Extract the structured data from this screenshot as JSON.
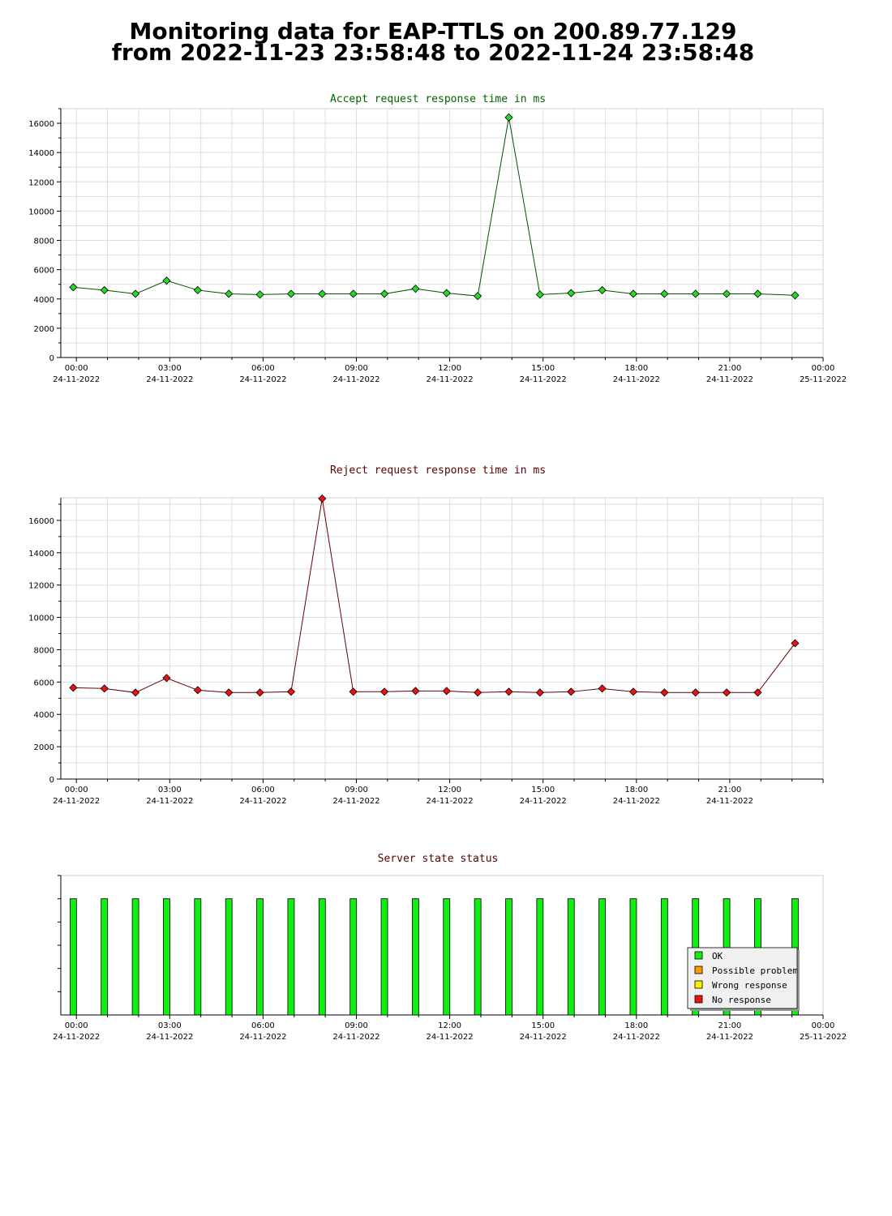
{
  "page": {
    "title_line_1": "Monitoring data for EAP-TTLS on 200.89.77.129",
    "title_line_2": "from 2022-11-23 23:58:48 to 2022-11-24 23:58:48"
  },
  "colors": {
    "accept_title": "#006400",
    "accept_line": "#005000",
    "accept_marker": "#22dd22",
    "reject_title": "#5a0000",
    "reject_line": "#600000",
    "reject_marker": "#ee1111",
    "status_title": "#5a0000",
    "ok": "#11ee11",
    "possible_problem": "#ff9900",
    "wrong_response": "#ffee00",
    "no_response": "#ee1111",
    "grid": "#dddddd"
  },
  "chart_data": [
    {
      "type": "line",
      "title": "Accept request response time in ms",
      "xlabel": "",
      "ylabel": "",
      "x_unit": "hours after 2022-11-24 00:00",
      "xlim": [
        -0.5,
        24
      ],
      "ylim": [
        0,
        17000
      ],
      "y_ticks": [
        0,
        2000,
        4000,
        6000,
        8000,
        10000,
        12000,
        14000,
        16000
      ],
      "x_tick_labels": [
        {
          "time": "00:00",
          "date": "24-11-2022"
        },
        {
          "time": "03:00",
          "date": "24-11-2022"
        },
        {
          "time": "06:00",
          "date": "24-11-2022"
        },
        {
          "time": "09:00",
          "date": "24-11-2022"
        },
        {
          "time": "12:00",
          "date": "24-11-2022"
        },
        {
          "time": "15:00",
          "date": "24-11-2022"
        },
        {
          "time": "18:00",
          "date": "24-11-2022"
        },
        {
          "time": "21:00",
          "date": "24-11-2022"
        },
        {
          "time": "00:00",
          "date": "25-11-2022"
        }
      ],
      "grid": true,
      "x": [
        -0.1,
        0.9,
        1.9,
        2.9,
        3.9,
        4.9,
        5.9,
        6.9,
        7.9,
        8.9,
        9.9,
        10.9,
        11.9,
        12.9,
        13.9,
        14.9,
        15.9,
        16.9,
        17.9,
        18.9,
        19.9,
        20.9,
        21.9,
        23.1
      ],
      "values": [
        4800,
        4600,
        4350,
        5250,
        4600,
        4350,
        4300,
        4350,
        4350,
        4350,
        4350,
        4700,
        4400,
        4200,
        16400,
        4300,
        4400,
        4600,
        4350,
        4350,
        4350,
        4350,
        4350,
        4250
      ]
    },
    {
      "type": "line",
      "title": "Reject request response time in ms",
      "xlabel": "",
      "ylabel": "",
      "x_unit": "hours after 2022-11-24 00:00",
      "xlim": [
        -0.5,
        24
      ],
      "ylim": [
        0,
        17400
      ],
      "y_ticks": [
        0,
        2000,
        4000,
        6000,
        8000,
        10000,
        12000,
        14000,
        16000
      ],
      "x_tick_labels": [
        {
          "time": "00:00",
          "date": "24-11-2022"
        },
        {
          "time": "03:00",
          "date": "24-11-2022"
        },
        {
          "time": "06:00",
          "date": "24-11-2022"
        },
        {
          "time": "09:00",
          "date": "24-11-2022"
        },
        {
          "time": "12:00",
          "date": "24-11-2022"
        },
        {
          "time": "15:00",
          "date": "24-11-2022"
        },
        {
          "time": "18:00",
          "date": "24-11-2022"
        },
        {
          "time": "21:00",
          "date": "24-11-2022"
        }
      ],
      "grid": true,
      "x": [
        -0.1,
        0.9,
        1.9,
        2.9,
        3.9,
        4.9,
        5.9,
        6.9,
        7.9,
        8.9,
        9.9,
        10.9,
        11.9,
        12.9,
        13.9,
        14.9,
        15.9,
        16.9,
        17.9,
        18.9,
        19.9,
        20.9,
        21.9,
        23.1
      ],
      "values": [
        5650,
        5600,
        5350,
        6250,
        5500,
        5350,
        5350,
        5400,
        17350,
        5400,
        5400,
        5450,
        5450,
        5350,
        5400,
        5350,
        5400,
        5600,
        5400,
        5350,
        5350,
        5350,
        5350,
        8400
      ]
    },
    {
      "type": "bar",
      "title": "Server state status",
      "xlabel": "",
      "ylabel": "",
      "x_unit": "hours after 2022-11-24 00:00",
      "xlim": [
        -0.5,
        24
      ],
      "ylim": [
        0,
        1.2
      ],
      "grid": false,
      "x_tick_labels": [
        {
          "time": "00:00",
          "date": "24-11-2022"
        },
        {
          "time": "03:00",
          "date": "24-11-2022"
        },
        {
          "time": "06:00",
          "date": "24-11-2022"
        },
        {
          "time": "09:00",
          "date": "24-11-2022"
        },
        {
          "time": "12:00",
          "date": "24-11-2022"
        },
        {
          "time": "15:00",
          "date": "24-11-2022"
        },
        {
          "time": "18:00",
          "date": "24-11-2022"
        },
        {
          "time": "21:00",
          "date": "24-11-2022"
        },
        {
          "time": "00:00",
          "date": "25-11-2022"
        }
      ],
      "x": [
        -0.1,
        0.9,
        1.9,
        2.9,
        3.9,
        4.9,
        5.9,
        6.9,
        7.9,
        8.9,
        9.9,
        10.9,
        11.9,
        12.9,
        13.9,
        14.9,
        15.9,
        16.9,
        17.9,
        18.9,
        19.9,
        20.9,
        21.9,
        23.1
      ],
      "states": [
        "OK",
        "OK",
        "OK",
        "OK",
        "OK",
        "OK",
        "OK",
        "OK",
        "OK",
        "OK",
        "OK",
        "OK",
        "OK",
        "OK",
        "OK",
        "OK",
        "OK",
        "OK",
        "OK",
        "OK",
        "OK",
        "OK",
        "OK",
        "OK"
      ],
      "values": [
        1,
        1,
        1,
        1,
        1,
        1,
        1,
        1,
        1,
        1,
        1,
        1,
        1,
        1,
        1,
        1,
        1,
        1,
        1,
        1,
        1,
        1,
        1,
        1
      ],
      "legend": {
        "placement": "bottom-right",
        "entries": [
          {
            "label": "OK",
            "color": "#11ee11"
          },
          {
            "label": "Possible problem",
            "color": "#ff9900"
          },
          {
            "label": "Wrong response",
            "color": "#ffee00"
          },
          {
            "label": "No response",
            "color": "#ee1111"
          }
        ]
      }
    }
  ]
}
